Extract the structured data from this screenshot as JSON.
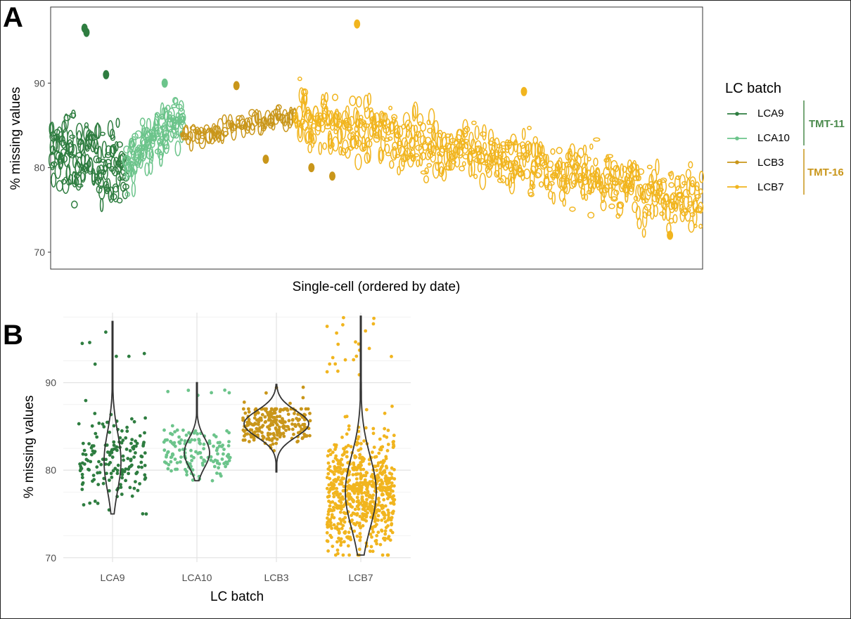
{
  "panels": {
    "a": "A",
    "b": "B"
  },
  "colors": {
    "LCA9": "#2e7d40",
    "LCA10": "#6cc48b",
    "LCB3": "#c9961a",
    "LCB7": "#f1b51f",
    "TMT-11": "#4a8a4c",
    "TMT-16": "#c9961a"
  },
  "chart_data": [
    {
      "type": "scatter",
      "panel": "A",
      "xlabel": "Single-cell (ordered by date)",
      "ylabel": "% missing values",
      "ylim": [
        68,
        99
      ],
      "yticks": [
        70,
        80,
        90
      ],
      "grid": false,
      "legend": {
        "title": "LC batch",
        "placement": "right",
        "entries": [
          "LCA9",
          "LCA10",
          "LCB3",
          "LCB7"
        ],
        "groups": [
          {
            "label": "TMT-11",
            "members": [
              "LCA9",
              "LCA10"
            ]
          },
          {
            "label": "TMT-16",
            "members": [
              "LCB3",
              "LCB7"
            ]
          }
        ]
      },
      "series": [
        {
          "name": "LCA9",
          "x_range": [
            0,
            115
          ],
          "y_center": [
            82,
            80
          ],
          "y_spread": 5,
          "n": 160,
          "outliers": [
            [
              52,
              96.5
            ],
            [
              55,
              96
            ],
            [
              85,
              91
            ]
          ]
        },
        {
          "name": "LCA10",
          "x_range": [
            115,
            205
          ],
          "y_center": [
            81,
            86
          ],
          "y_spread": 3,
          "n": 130,
          "outliers": [
            [
              175,
              90
            ]
          ]
        },
        {
          "name": "LCB3",
          "x_range": [
            200,
            375
          ],
          "y_center": [
            83.5,
            86
          ],
          "y_spread": 1.2,
          "n": 90,
          "outliers": [
            [
              285,
              89.7
            ],
            [
              330,
              81
            ],
            [
              400,
              80
            ],
            [
              432,
              79
            ]
          ]
        },
        {
          "name": "LCB7",
          "x_range": [
            375,
            1000
          ],
          "y_center": [
            86,
            76
          ],
          "y_spread": 3.5,
          "n": 650,
          "outliers": [
            [
              470,
              97
            ],
            [
              726,
              89
            ],
            [
              950,
              72
            ]
          ]
        }
      ]
    },
    {
      "type": "scatter",
      "subtype": "violin with jitter",
      "panel": "B",
      "xlabel": "LC batch",
      "ylabel": "% missing values",
      "categories": [
        "LCA9",
        "LCA10",
        "LCB3",
        "LCB7"
      ],
      "ylim": [
        69.5,
        98
      ],
      "yticks": [
        70,
        80,
        90
      ],
      "grid": true,
      "series": [
        {
          "name": "LCA9",
          "min": 75,
          "max": 97,
          "median": 81,
          "n": 170
        },
        {
          "name": "LCA10",
          "min": 78.8,
          "max": 90,
          "median": 82,
          "n": 150
        },
        {
          "name": "LCB3",
          "min": 79.8,
          "max": 89.8,
          "median": 85.3,
          "n": 240
        },
        {
          "name": "LCB7",
          "min": 70.3,
          "max": 97.6,
          "median": 77.5,
          "n": 700
        }
      ]
    }
  ]
}
